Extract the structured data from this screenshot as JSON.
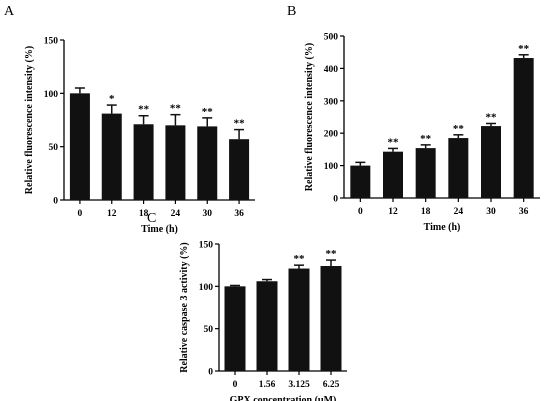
{
  "panels": [
    {
      "letter": "A",
      "chart_data": {
        "type": "bar",
        "categories": [
          "0",
          "12",
          "18",
          "24",
          "30",
          "36"
        ],
        "values": [
          100,
          81,
          71,
          70,
          69,
          57
        ],
        "errors": [
          5,
          8,
          8,
          10,
          8,
          9
        ],
        "significance": [
          "",
          "*",
          "**",
          "**",
          "**",
          "**"
        ],
        "xlabel": "Time (h)",
        "ylabel": "Relative fluorescence intensity (%)",
        "ylim": [
          0,
          150
        ],
        "yticks": [
          0,
          50,
          100,
          150
        ],
        "bar_color": "#111111",
        "grid": false
      }
    },
    {
      "letter": "B",
      "chart_data": {
        "type": "bar",
        "categories": [
          "0",
          "12",
          "18",
          "24",
          "30",
          "36"
        ],
        "values": [
          100,
          143,
          154,
          185,
          222,
          432
        ],
        "errors": [
          10,
          10,
          10,
          10,
          8,
          10
        ],
        "significance": [
          "",
          "**",
          "**",
          "**",
          "**",
          "**"
        ],
        "xlabel": "Time (h)",
        "ylabel": "Relative fluorescence intensity (%)",
        "ylim": [
          0,
          500
        ],
        "yticks": [
          0,
          100,
          200,
          300,
          400,
          500
        ],
        "bar_color": "#111111",
        "grid": false
      }
    },
    {
      "letter": "C",
      "chart_data": {
        "type": "bar",
        "categories": [
          "0",
          "1.56",
          "3.125",
          "6.25"
        ],
        "values": [
          100,
          106,
          121,
          124
        ],
        "errors": [
          1,
          2,
          4,
          7
        ],
        "significance": [
          "",
          "",
          "**",
          "**"
        ],
        "xlabel": "GPX concentration (μM)",
        "ylabel": "Relative caspase 3  activity (%)",
        "ylim": [
          0,
          150
        ],
        "yticks": [
          0,
          50,
          100,
          150
        ],
        "bar_color": "#111111",
        "grid": false
      }
    }
  ]
}
